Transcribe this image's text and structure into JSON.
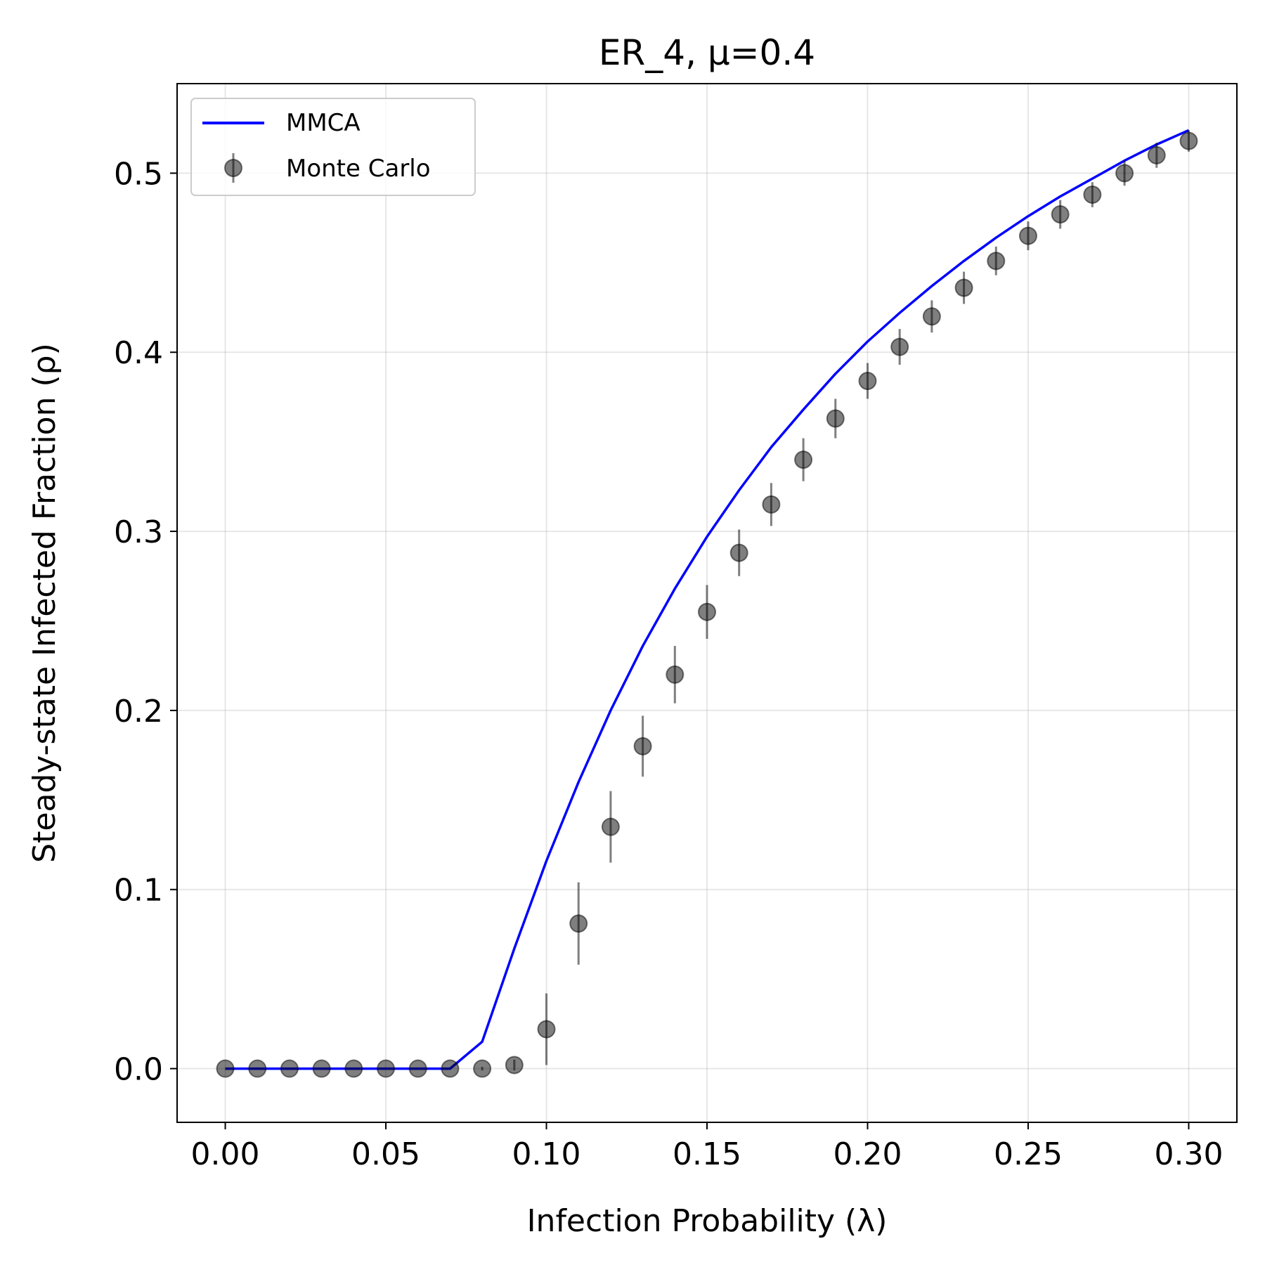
{
  "chart_data": {
    "type": "line",
    "title": "ER_4, μ=0.4",
    "xlabel": "Infection Probability (λ)",
    "ylabel": "Steady-state Infected Fraction (ρ)",
    "xlim": [
      -0.015,
      0.315
    ],
    "ylim": [
      -0.03,
      0.55
    ],
    "xticks": [
      0.0,
      0.05,
      0.1,
      0.15,
      0.2,
      0.25,
      0.3
    ],
    "xtick_labels": [
      "0.00",
      "0.05",
      "0.10",
      "0.15",
      "0.20",
      "0.25",
      "0.30"
    ],
    "yticks": [
      0.0,
      0.1,
      0.2,
      0.3,
      0.4,
      0.5
    ],
    "ytick_labels": [
      "0.0",
      "0.1",
      "0.2",
      "0.3",
      "0.4",
      "0.5"
    ],
    "grid": true,
    "legend_position": "top-left",
    "series": [
      {
        "name": "MMCA",
        "kind": "line",
        "color": "#0000ff",
        "x": [
          0.0,
          0.01,
          0.02,
          0.03,
          0.04,
          0.05,
          0.06,
          0.07,
          0.08,
          0.09,
          0.1,
          0.11,
          0.12,
          0.13,
          0.14,
          0.15,
          0.16,
          0.17,
          0.18,
          0.19,
          0.2,
          0.21,
          0.22,
          0.23,
          0.24,
          0.25,
          0.26,
          0.27,
          0.28,
          0.29,
          0.3
        ],
        "y": [
          0.0,
          0.0,
          0.0,
          0.0,
          0.0,
          0.0,
          0.0,
          0.0,
          0.015,
          0.067,
          0.116,
          0.16,
          0.2,
          0.236,
          0.268,
          0.297,
          0.323,
          0.347,
          0.368,
          0.388,
          0.406,
          0.422,
          0.437,
          0.451,
          0.464,
          0.476,
          0.487,
          0.497,
          0.507,
          0.516,
          0.524
        ]
      },
      {
        "name": "Monte Carlo",
        "kind": "errorbar",
        "color": "#000000",
        "x": [
          0.0,
          0.01,
          0.02,
          0.03,
          0.04,
          0.05,
          0.06,
          0.07,
          0.08,
          0.09,
          0.1,
          0.11,
          0.12,
          0.13,
          0.14,
          0.15,
          0.16,
          0.17,
          0.18,
          0.19,
          0.2,
          0.21,
          0.22,
          0.23,
          0.24,
          0.25,
          0.26,
          0.27,
          0.28,
          0.29,
          0.3
        ],
        "y": [
          0.0,
          0.0,
          0.0,
          0.0,
          0.0,
          0.0,
          0.0,
          0.0,
          0.0,
          0.002,
          0.022,
          0.081,
          0.135,
          0.18,
          0.22,
          0.255,
          0.288,
          0.315,
          0.34,
          0.363,
          0.384,
          0.403,
          0.42,
          0.436,
          0.451,
          0.465,
          0.477,
          0.488,
          0.5,
          0.51,
          0.518
        ],
        "yerr": [
          0.0,
          0.0,
          0.0,
          0.0,
          0.0,
          0.0,
          0.0,
          0.0,
          0.001,
          0.003,
          0.02,
          0.023,
          0.02,
          0.017,
          0.016,
          0.015,
          0.013,
          0.012,
          0.012,
          0.011,
          0.01,
          0.01,
          0.009,
          0.009,
          0.008,
          0.008,
          0.008,
          0.007,
          0.007,
          0.007,
          0.006
        ]
      }
    ]
  }
}
